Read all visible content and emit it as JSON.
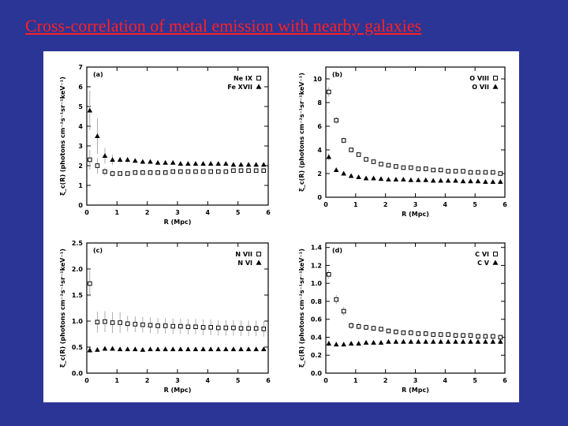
{
  "slide": {
    "title": "Cross-correlation of metal emission with nearby galaxies",
    "background": "#2b3596",
    "title_color": "#ff2020"
  },
  "chart_data": [
    {
      "type": "scatter",
      "panel": "(a)",
      "xlabel": "R (Mpc)",
      "ylabel": "ξ_c(R) (photons cm⁻²s⁻¹sr⁻¹keV⁻¹)",
      "xlim": [
        0,
        6
      ],
      "ylim": [
        0,
        7
      ],
      "xticks": [
        "0",
        "1",
        "2",
        "3",
        "4",
        "5",
        "6"
      ],
      "yticks": [
        "0",
        "1",
        "2",
        "3",
        "4",
        "5",
        "6",
        "7"
      ],
      "legend_position": "top-right",
      "series": [
        {
          "name": "Ne IX",
          "marker": "square",
          "x": [
            0.1,
            0.35,
            0.6,
            0.85,
            1.1,
            1.35,
            1.6,
            1.85,
            2.1,
            2.35,
            2.6,
            2.85,
            3.1,
            3.35,
            3.6,
            3.85,
            4.1,
            4.35,
            4.6,
            4.85,
            5.1,
            5.35,
            5.6,
            5.85
          ],
          "y": [
            2.3,
            2.0,
            1.7,
            1.6,
            1.6,
            1.6,
            1.65,
            1.65,
            1.65,
            1.65,
            1.65,
            1.7,
            1.7,
            1.7,
            1.7,
            1.7,
            1.7,
            1.7,
            1.7,
            1.75,
            1.75,
            1.75,
            1.75,
            1.75
          ],
          "err": [
            0.5,
            0.4,
            0.2,
            0.15,
            0.1,
            0.1,
            0.1,
            0.1,
            0.1,
            0.1,
            0.1,
            0.1,
            0.1,
            0.1,
            0.1,
            0.1,
            0.1,
            0.1,
            0.1,
            0.1,
            0.1,
            0.1,
            0.1,
            0.1
          ]
        },
        {
          "name": "Fe XVII",
          "marker": "triangle",
          "x": [
            0.1,
            0.35,
            0.6,
            0.85,
            1.1,
            1.35,
            1.6,
            1.85,
            2.1,
            2.35,
            2.6,
            2.85,
            3.1,
            3.35,
            3.6,
            3.85,
            4.1,
            4.35,
            4.6,
            4.85,
            5.1,
            5.35,
            5.6,
            5.85
          ],
          "y": [
            4.8,
            3.5,
            2.5,
            2.3,
            2.3,
            2.3,
            2.25,
            2.2,
            2.2,
            2.15,
            2.15,
            2.15,
            2.1,
            2.1,
            2.1,
            2.1,
            2.1,
            2.1,
            2.1,
            2.05,
            2.05,
            2.05,
            2.05,
            2.05
          ],
          "err": [
            1.0,
            0.9,
            0.4,
            0.25,
            0.15,
            0.15,
            0.1,
            0.1,
            0.1,
            0.1,
            0.1,
            0.1,
            0.1,
            0.1,
            0.1,
            0.1,
            0.1,
            0.1,
            0.1,
            0.1,
            0.1,
            0.1,
            0.1,
            0.1
          ]
        }
      ]
    },
    {
      "type": "scatter",
      "panel": "(b)",
      "xlabel": "R (Mpc)",
      "ylabel": "ξ_c(R) (photons cm⁻²s⁻¹sr⁻¹keV⁻¹)",
      "xlim": [
        0,
        6
      ],
      "ylim": [
        0,
        11
      ],
      "xticks": [
        "0",
        "1",
        "2",
        "3",
        "4",
        "5",
        "6"
      ],
      "yticks": [
        "0",
        "2",
        "4",
        "6",
        "8",
        "10"
      ],
      "legend_position": "top-right",
      "series": [
        {
          "name": "O VIII",
          "marker": "square",
          "x": [
            0.1,
            0.35,
            0.6,
            0.85,
            1.1,
            1.35,
            1.6,
            1.85,
            2.1,
            2.35,
            2.6,
            2.85,
            3.1,
            3.35,
            3.6,
            3.85,
            4.1,
            4.35,
            4.6,
            4.85,
            5.1,
            5.35,
            5.6,
            5.85
          ],
          "y": [
            8.9,
            6.5,
            4.8,
            4.0,
            3.6,
            3.2,
            3.0,
            2.8,
            2.7,
            2.6,
            2.5,
            2.5,
            2.4,
            2.4,
            2.3,
            2.3,
            2.2,
            2.2,
            2.2,
            2.1,
            2.1,
            2.1,
            2.1,
            2.0
          ],
          "err": [
            0.4,
            0.3,
            0.25,
            0.2,
            0.15,
            0.15,
            0.1,
            0.1,
            0.1,
            0.1,
            0.1,
            0.1,
            0.1,
            0.1,
            0.1,
            0.1,
            0.1,
            0.1,
            0.1,
            0.1,
            0.1,
            0.1,
            0.1,
            0.1
          ]
        },
        {
          "name": "O VII",
          "marker": "triangle",
          "x": [
            0.1,
            0.35,
            0.6,
            0.85,
            1.1,
            1.35,
            1.6,
            1.85,
            2.1,
            2.35,
            2.6,
            2.85,
            3.1,
            3.35,
            3.6,
            3.85,
            4.1,
            4.35,
            4.6,
            4.85,
            5.1,
            5.35,
            5.6,
            5.85
          ],
          "y": [
            3.4,
            2.3,
            2.0,
            1.8,
            1.7,
            1.6,
            1.6,
            1.55,
            1.5,
            1.5,
            1.5,
            1.45,
            1.45,
            1.45,
            1.4,
            1.4,
            1.4,
            1.4,
            1.35,
            1.35,
            1.35,
            1.3,
            1.3,
            1.3
          ],
          "err": [
            0.3,
            0.2,
            0.15,
            0.1,
            0.1,
            0.1,
            0.1,
            0.1,
            0.1,
            0.1,
            0.1,
            0.1,
            0.1,
            0.1,
            0.1,
            0.1,
            0.1,
            0.1,
            0.1,
            0.1,
            0.1,
            0.1,
            0.1,
            0.1
          ]
        }
      ]
    },
    {
      "type": "scatter",
      "panel": "(c)",
      "xlabel": "R (Mpc)",
      "ylabel": "ξ_c(R) (photons cm⁻²s⁻¹sr⁻¹keV⁻¹)",
      "xlim": [
        0,
        6
      ],
      "ylim": [
        0,
        2.5
      ],
      "xticks": [
        "0",
        "1",
        "2",
        "3",
        "4",
        "5",
        "6"
      ],
      "yticks": [
        "0.0",
        "0.5",
        "1.0",
        "1.5",
        "2.0",
        "2.5"
      ],
      "legend_position": "top-right",
      "series": [
        {
          "name": "N VII",
          "marker": "square",
          "x": [
            0.1,
            0.35,
            0.6,
            0.85,
            1.1,
            1.35,
            1.6,
            1.85,
            2.1,
            2.35,
            2.6,
            2.85,
            3.1,
            3.35,
            3.6,
            3.85,
            4.1,
            4.35,
            4.6,
            4.85,
            5.1,
            5.35,
            5.6,
            5.85
          ],
          "y": [
            1.72,
            0.98,
            0.99,
            0.97,
            0.97,
            0.95,
            0.94,
            0.93,
            0.92,
            0.91,
            0.91,
            0.9,
            0.9,
            0.89,
            0.89,
            0.88,
            0.88,
            0.87,
            0.87,
            0.87,
            0.86,
            0.86,
            0.86,
            0.85
          ],
          "err": [
            0.25,
            0.2,
            0.2,
            0.2,
            0.2,
            0.15,
            0.15,
            0.15,
            0.15,
            0.15,
            0.15,
            0.15,
            0.15,
            0.15,
            0.15,
            0.15,
            0.15,
            0.15,
            0.15,
            0.15,
            0.15,
            0.15,
            0.15,
            0.15
          ]
        },
        {
          "name": "N VI",
          "marker": "triangle",
          "x": [
            0.1,
            0.35,
            0.6,
            0.85,
            1.1,
            1.35,
            1.6,
            1.85,
            2.1,
            2.35,
            2.6,
            2.85,
            3.1,
            3.35,
            3.6,
            3.85,
            4.1,
            4.35,
            4.6,
            4.85,
            5.1,
            5.35,
            5.6,
            5.85
          ],
          "y": [
            0.44,
            0.45,
            0.47,
            0.47,
            0.46,
            0.46,
            0.46,
            0.45,
            0.46,
            0.46,
            0.46,
            0.46,
            0.46,
            0.46,
            0.46,
            0.46,
            0.46,
            0.46,
            0.46,
            0.46,
            0.46,
            0.46,
            0.46,
            0.46
          ],
          "err": [
            0.05,
            0.04,
            0.04,
            0.04,
            0.03,
            0.03,
            0.03,
            0.03,
            0.03,
            0.03,
            0.03,
            0.03,
            0.03,
            0.03,
            0.03,
            0.03,
            0.03,
            0.03,
            0.03,
            0.03,
            0.03,
            0.03,
            0.03,
            0.03
          ]
        }
      ]
    },
    {
      "type": "scatter",
      "panel": "(d)",
      "xlabel": "R (Mpc)",
      "ylabel": "ξ_c(R) (photons cm⁻²s⁻¹sr⁻¹keV⁻¹)",
      "xlim": [
        0,
        6
      ],
      "ylim": [
        0,
        1.45
      ],
      "xticks": [
        "0",
        "1",
        "2",
        "3",
        "4",
        "5",
        "6"
      ],
      "yticks": [
        "0.0",
        "0.2",
        "0.4",
        "0.6",
        "0.8",
        "1.0",
        "1.2",
        "1.4"
      ],
      "legend_position": "top-right",
      "series": [
        {
          "name": "C VI",
          "marker": "square",
          "x": [
            0.1,
            0.35,
            0.6,
            0.85,
            1.1,
            1.35,
            1.6,
            1.85,
            2.1,
            2.35,
            2.6,
            2.85,
            3.1,
            3.35,
            3.6,
            3.85,
            4.1,
            4.35,
            4.6,
            4.85,
            5.1,
            5.35,
            5.6,
            5.85
          ],
          "y": [
            1.1,
            0.82,
            0.69,
            0.53,
            0.52,
            0.51,
            0.5,
            0.49,
            0.47,
            0.46,
            0.45,
            0.45,
            0.44,
            0.44,
            0.43,
            0.43,
            0.43,
            0.42,
            0.42,
            0.42,
            0.41,
            0.41,
            0.41,
            0.4
          ],
          "err": [
            0.05,
            0.05,
            0.05,
            0.04,
            0.04,
            0.03,
            0.03,
            0.03,
            0.03,
            0.03,
            0.03,
            0.03,
            0.03,
            0.03,
            0.03,
            0.03,
            0.03,
            0.03,
            0.03,
            0.03,
            0.03,
            0.03,
            0.03,
            0.03
          ]
        },
        {
          "name": "C V",
          "marker": "triangle",
          "x": [
            0.1,
            0.35,
            0.6,
            0.85,
            1.1,
            1.35,
            1.6,
            1.85,
            2.1,
            2.35,
            2.6,
            2.85,
            3.1,
            3.35,
            3.6,
            3.85,
            4.1,
            4.35,
            4.6,
            4.85,
            5.1,
            5.35,
            5.6,
            5.85
          ],
          "y": [
            0.33,
            0.32,
            0.32,
            0.33,
            0.33,
            0.34,
            0.34,
            0.34,
            0.35,
            0.35,
            0.35,
            0.35,
            0.35,
            0.35,
            0.35,
            0.35,
            0.35,
            0.35,
            0.35,
            0.35,
            0.35,
            0.35,
            0.35,
            0.35
          ],
          "err": [
            0.03,
            0.02,
            0.02,
            0.02,
            0.02,
            0.02,
            0.02,
            0.02,
            0.02,
            0.02,
            0.02,
            0.02,
            0.02,
            0.02,
            0.02,
            0.02,
            0.02,
            0.02,
            0.02,
            0.02,
            0.02,
            0.02,
            0.02,
            0.02
          ]
        }
      ]
    }
  ]
}
